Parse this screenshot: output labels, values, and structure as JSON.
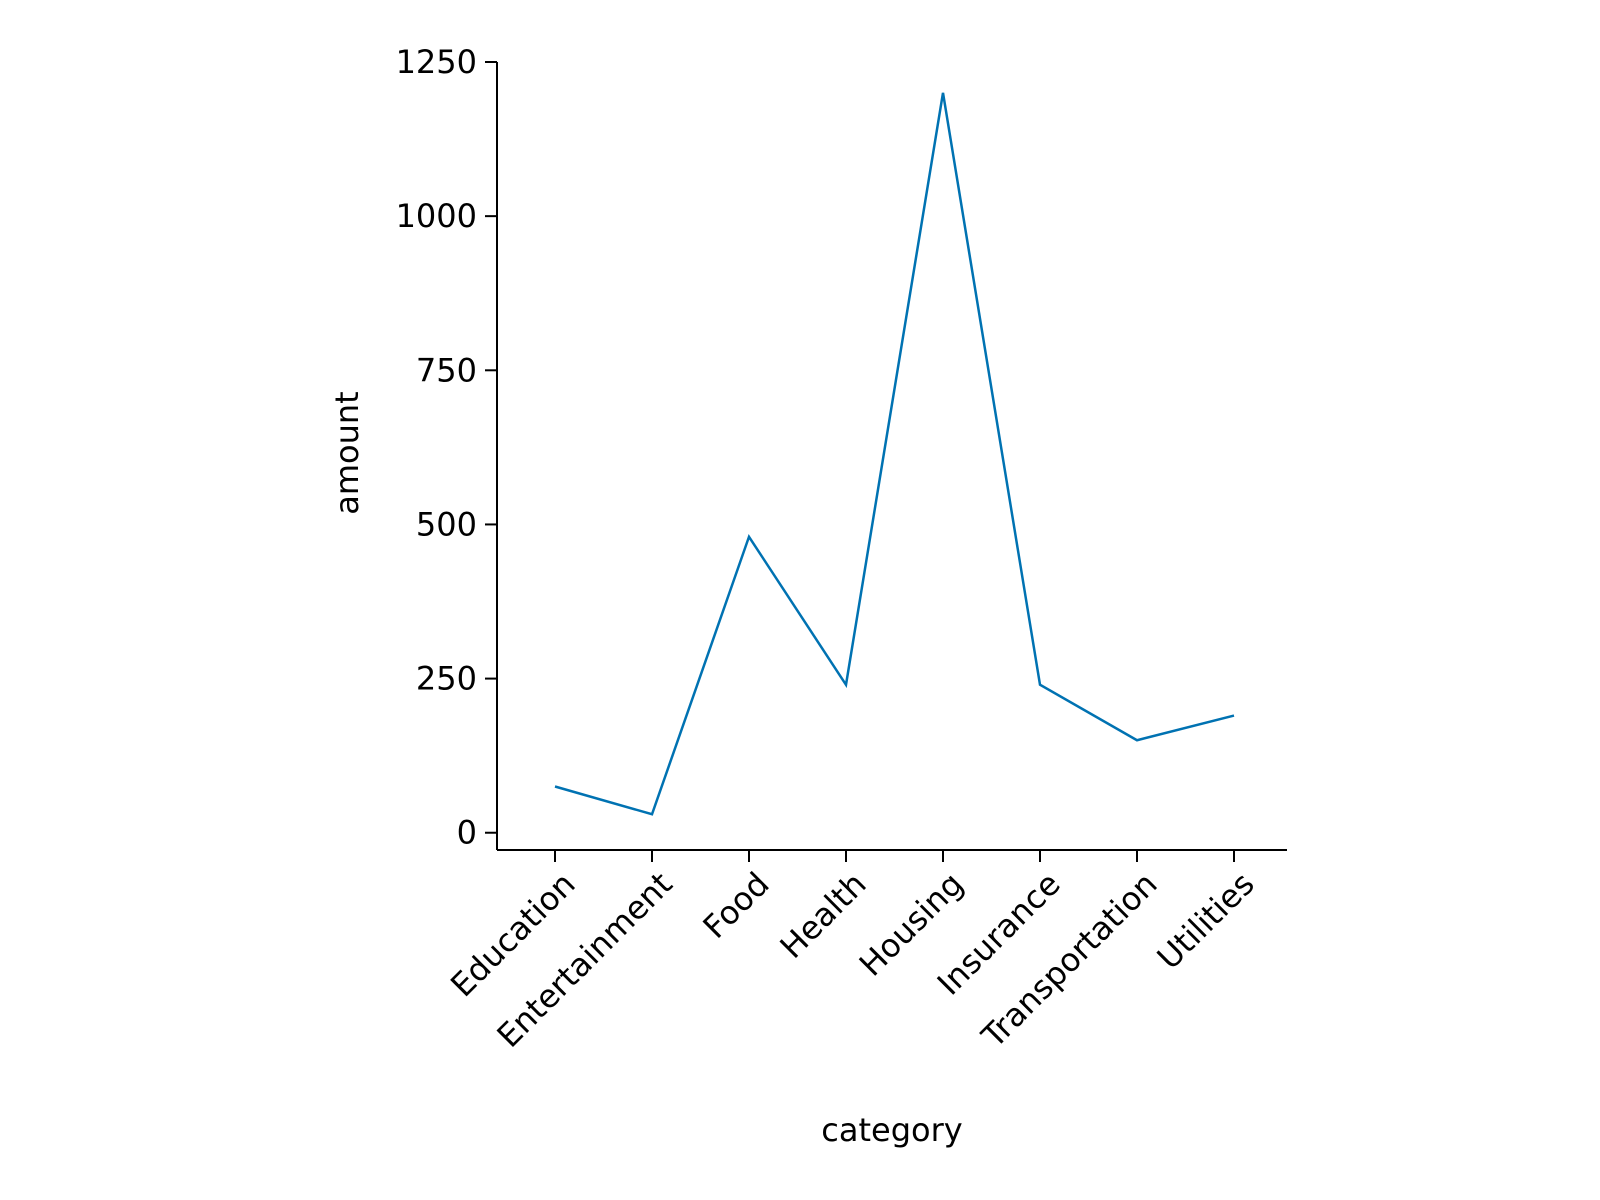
{
  "chart_data": {
    "type": "line",
    "title": "",
    "xlabel": "category",
    "ylabel": "amount",
    "categories": [
      "Education",
      "Entertainment",
      "Food",
      "Health",
      "Housing",
      "Insurance",
      "Transportation",
      "Utilities"
    ],
    "series": [
      {
        "values": [
          75,
          30,
          480,
          240,
          1200,
          240,
          150,
          190
        ]
      }
    ],
    "ylim": [
      -28,
      1250
    ],
    "yticks": [
      0,
      250,
      500,
      750,
      1000,
      1250
    ],
    "ytick_labels": [
      "0",
      "250",
      "500",
      "750",
      "1000",
      "1250"
    ],
    "grid": false,
    "legend": "none",
    "colors": {
      "line": "#0072b2",
      "axis": "#000000"
    }
  }
}
